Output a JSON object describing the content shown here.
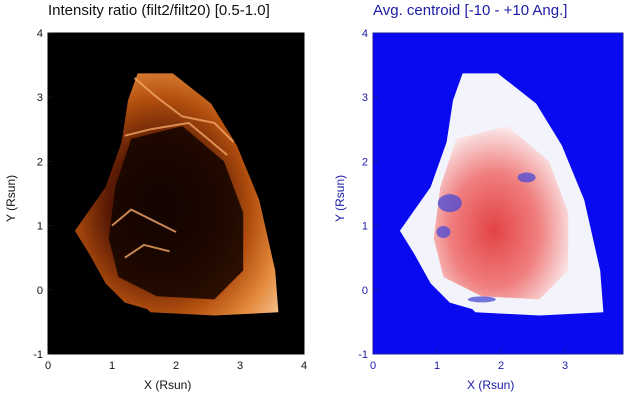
{
  "chart_data": [
    {
      "type": "heatmap",
      "title": "Intensity ratio (filt2/filt20) [0.5-1.0]",
      "xlabel": "X (Rsun)",
      "ylabel": "Y (Rsun)",
      "xlim": [
        0,
        4
      ],
      "ylim": [
        -1,
        4
      ],
      "x_ticks": [
        0,
        1,
        2,
        3,
        4
      ],
      "y_ticks": [
        -1,
        0,
        1,
        2,
        3,
        4
      ],
      "value_range": [
        0.5,
        1.0
      ],
      "colormap": "black-orange-white",
      "background_color": "#000000"
    },
    {
      "type": "heatmap",
      "title": "Avg. centroid [-10 - +10 Ang.]",
      "xlabel": "X (Rsun)",
      "ylabel": "Y (Rsun)",
      "xlim": [
        0,
        4
      ],
      "ylim": [
        -1,
        4
      ],
      "x_ticks": [
        0,
        1,
        2,
        3
      ],
      "y_ticks": [
        -1,
        0,
        1,
        2,
        3,
        4
      ],
      "value_range": [
        -10,
        10
      ],
      "colormap": "blue-white-red",
      "background_color": "#0a0af0"
    }
  ],
  "colors": {
    "left_text": "#111111",
    "right_text": "#1a1aa6"
  }
}
